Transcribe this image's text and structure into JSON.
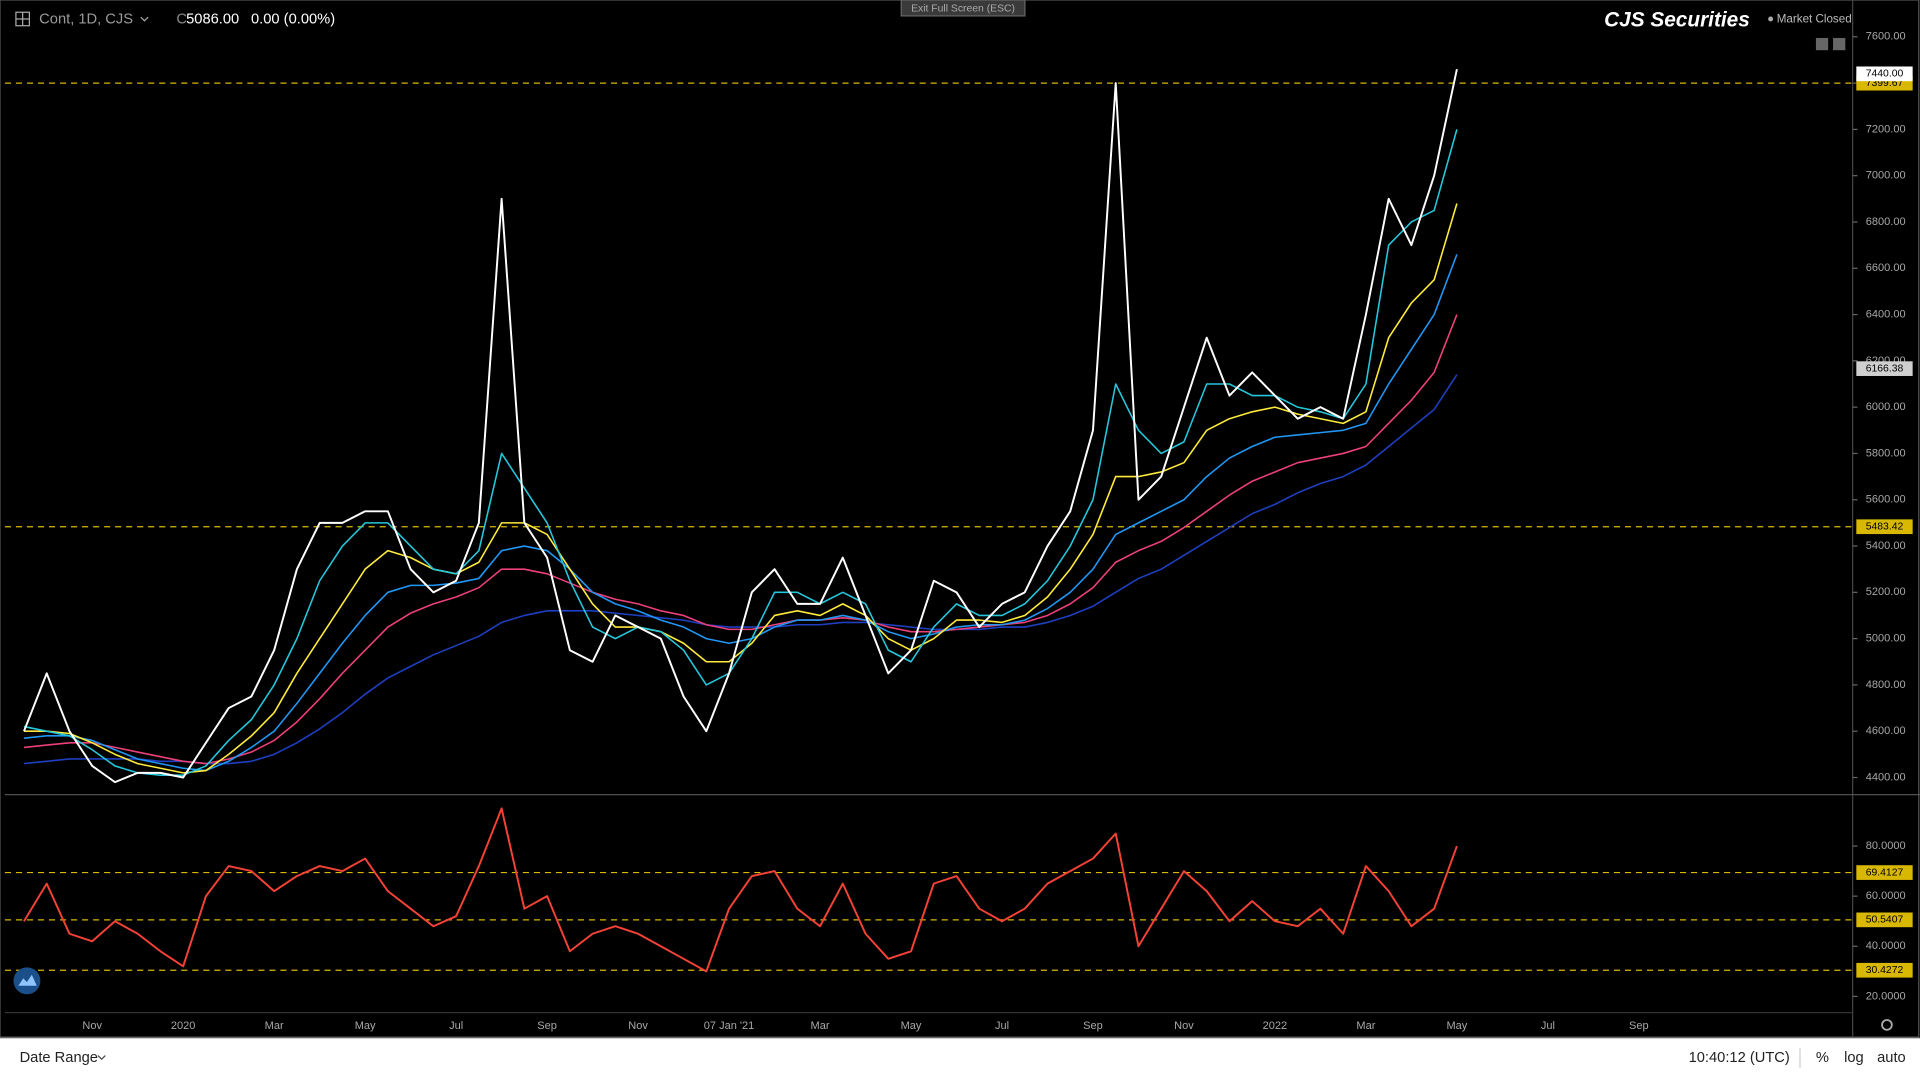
{
  "toolbar": {
    "symbol": "Cont, 1D, CJS",
    "close_prefix": "C",
    "close": "5086.00",
    "change": "0.00 (0.00%)",
    "exit_button": "Exit Full Screen (ESC)",
    "brand": "CJS Securities",
    "status": "Market Closed"
  },
  "footer": {
    "date_range": "Date Range",
    "clock": "10:40:12 (UTC)",
    "percent": "%",
    "log": "log",
    "auto": "auto"
  },
  "chart_data": [
    {
      "type": "line",
      "categories": [
        null,
        null,
        null,
        null,
        "Nov",
        null,
        null,
        null,
        "2020",
        null,
        null,
        null,
        "Mar",
        null,
        null,
        null,
        "May",
        null,
        null,
        null,
        "Jul",
        null,
        null,
        null,
        "Sep",
        null,
        null,
        null,
        "Nov",
        null,
        null,
        null,
        "07 Jan '21",
        null,
        null,
        null,
        "Mar",
        null,
        null,
        null,
        "May",
        null,
        null,
        null,
        "Jul",
        null,
        null,
        null,
        "Sep",
        null,
        null,
        null,
        "Nov",
        null,
        null,
        null,
        "2022",
        null,
        null,
        null,
        "Mar",
        null,
        null,
        null,
        "May",
        null,
        null,
        null,
        "Jul",
        null,
        null,
        null,
        "Sep",
        null,
        null
      ],
      "ylim": [
        4331,
        7759
      ],
      "yticks": [
        {
          "value": 4400,
          "label": "4400.00"
        },
        {
          "value": 4600,
          "label": "4600.00"
        },
        {
          "value": 4800,
          "label": "4800.00"
        },
        {
          "value": 5000,
          "label": "5000.00"
        },
        {
          "value": 5200,
          "label": "5200.00"
        },
        {
          "value": 5400,
          "label": "5400.00"
        },
        {
          "value": 5600,
          "label": "5600.00"
        },
        {
          "value": 5800,
          "label": "5800.00"
        },
        {
          "value": 6000,
          "label": "6000.00"
        },
        {
          "value": 6200,
          "label": "6200.00"
        },
        {
          "value": 6400,
          "label": "6400.00"
        },
        {
          "value": 6600,
          "label": "6600.00"
        },
        {
          "value": 6800,
          "label": "6800.00"
        },
        {
          "value": 7000,
          "label": "7000.00"
        },
        {
          "value": 7200,
          "label": "7200.00"
        },
        {
          "value": 7400,
          "label": "7400.00"
        },
        {
          "value": 7600,
          "label": "7600.00"
        }
      ],
      "grid": false,
      "hlines": [
        7399.67,
        5483.42
      ],
      "hline_color": "#d8b800",
      "price_labels": [
        {
          "value": 7440,
          "label": "7440.00",
          "color": "#ffffff"
        },
        {
          "value": 6166.38,
          "color": "#cfcfcf"
        }
      ],
      "series": [
        {
          "color": "#1e3fbf",
          "values": [
            null,
            4460,
            4470,
            4480,
            4480,
            4480,
            4480,
            4470,
            4470,
            4460,
            4460,
            4470,
            4500,
            4550,
            4610,
            4680,
            4760,
            4830,
            4880,
            4930,
            4970,
            5010,
            5070,
            5100,
            5120,
            5120,
            5120,
            5110,
            5100,
            5090,
            5080,
            5060,
            5050,
            5050,
            5050,
            5060,
            5060,
            5070,
            5070,
            5060,
            5050,
            5040,
            5040,
            5040,
            5050,
            5050,
            5070,
            5100,
            5140,
            5200,
            5260,
            5300,
            5360,
            5420,
            5480,
            5540,
            5580,
            5630,
            5670,
            5700,
            5750,
            5830,
            5910,
            5990,
            6140,
            null,
            null,
            null,
            null,
            null,
            null,
            null,
            null,
            null,
            null
          ]
        },
        {
          "color": "#ec407a",
          "values": [
            null,
            4530,
            4540,
            4550,
            4550,
            4530,
            4510,
            4490,
            4470,
            4460,
            4480,
            4510,
            4560,
            4640,
            4740,
            4850,
            4950,
            5050,
            5110,
            5150,
            5180,
            5220,
            5300,
            5300,
            5280,
            5240,
            5200,
            5170,
            5150,
            5120,
            5100,
            5060,
            5040,
            5040,
            5060,
            5080,
            5080,
            5090,
            5080,
            5050,
            5030,
            5030,
            5040,
            5050,
            5060,
            5070,
            5100,
            5150,
            5220,
            5330,
            5380,
            5420,
            5480,
            5550,
            5620,
            5680,
            5720,
            5760,
            5780,
            5800,
            5830,
            5930,
            6030,
            6150,
            6400,
            null,
            null,
            null,
            null,
            null,
            null,
            null,
            null,
            null,
            null
          ]
        },
        {
          "color": "#2196f3",
          "values": [
            null,
            4570,
            4580,
            4580,
            4560,
            4520,
            4480,
            4460,
            4440,
            4430,
            4470,
            4530,
            4600,
            4720,
            4850,
            4980,
            5100,
            5200,
            5230,
            5230,
            5240,
            5260,
            5380,
            5400,
            5380,
            5300,
            5200,
            5150,
            5120,
            5080,
            5050,
            5000,
            4980,
            5000,
            5050,
            5080,
            5080,
            5100,
            5080,
            5030,
            5000,
            5020,
            5050,
            5060,
            5060,
            5080,
            5130,
            5200,
            5300,
            5450,
            5500,
            5550,
            5600,
            5700,
            5780,
            5830,
            5870,
            5880,
            5890,
            5900,
            5930,
            6100,
            6250,
            6400,
            6660,
            null,
            null,
            null,
            null,
            null,
            null,
            null,
            null,
            null,
            null
          ]
        },
        {
          "color": "#ffeb3b",
          "values": [
            null,
            4600,
            4600,
            4590,
            4550,
            4500,
            4460,
            4440,
            4420,
            4430,
            4500,
            4580,
            4680,
            4850,
            5000,
            5150,
            5300,
            5380,
            5350,
            5300,
            5280,
            5330,
            5500,
            5500,
            5450,
            5300,
            5150,
            5050,
            5050,
            5030,
            4980,
            4900,
            4900,
            4980,
            5100,
            5120,
            5100,
            5150,
            5100,
            5000,
            4950,
            5000,
            5080,
            5080,
            5070,
            5100,
            5180,
            5300,
            5450,
            5700,
            5700,
            5720,
            5760,
            5900,
            5950,
            5980,
            6000,
            5970,
            5950,
            5930,
            5980,
            6300,
            6450,
            6550,
            6880,
            null,
            null,
            null,
            null,
            null,
            null,
            null,
            null,
            null,
            null
          ]
        },
        {
          "color": "#26c6da",
          "values": [
            null,
            4620,
            4600,
            4580,
            4520,
            4450,
            4420,
            4410,
            4410,
            4450,
            4560,
            4650,
            4800,
            5000,
            5250,
            5400,
            5500,
            5500,
            5400,
            5300,
            5280,
            5380,
            5800,
            5650,
            5500,
            5250,
            5050,
            5000,
            5050,
            5030,
            4950,
            4800,
            4850,
            5000,
            5200,
            5200,
            5150,
            5200,
            5150,
            4950,
            4900,
            5050,
            5150,
            5100,
            5100,
            5150,
            5250,
            5400,
            5600,
            6100,
            5900,
            5800,
            5850,
            6100,
            6100,
            6050,
            6050,
            6000,
            5980,
            5950,
            6100,
            6700,
            6800,
            6850,
            7200,
            null,
            null,
            null,
            null,
            null,
            null,
            null,
            null,
            null,
            null
          ]
        },
        {
          "color": "#ffffff",
          "values": [
            null,
            4600,
            4850,
            4600,
            4450,
            4380,
            4420,
            4420,
            4400,
            4550,
            4700,
            4750,
            4950,
            5300,
            5500,
            5500,
            5550,
            5550,
            5300,
            5200,
            5250,
            5500,
            6900,
            5500,
            5350,
            4950,
            4900,
            5100,
            5050,
            5000,
            4750,
            4600,
            4850,
            5200,
            5300,
            5150,
            5150,
            5350,
            5100,
            4850,
            4950,
            5250,
            5200,
            5050,
            5150,
            5200,
            5400,
            5550,
            5900,
            7400,
            5600,
            5700,
            6000,
            6300,
            6050,
            6150,
            6050,
            5950,
            6000,
            5950,
            6400,
            6900,
            6700,
            7000,
            7460,
            null,
            null,
            null,
            null,
            null,
            null,
            null,
            null,
            null,
            null
          ]
        }
      ]
    },
    {
      "type": "line",
      "ylim": [
        14,
        100
      ],
      "yticks": [
        {
          "value": 20,
          "label": "20.0000"
        },
        {
          "value": 40,
          "label": "40.0000"
        },
        {
          "value": 60,
          "label": "60.0000"
        },
        {
          "value": 80,
          "label": "80.0000"
        }
      ],
      "grid": false,
      "hlines": [
        69.4127,
        50.5407,
        30.4272
      ],
      "hline_color": "#d8b800",
      "series": [
        {
          "color": "#f44336",
          "values": [
            null,
            50,
            65,
            45,
            42,
            50,
            45,
            38,
            32,
            60,
            72,
            70,
            62,
            68,
            72,
            70,
            75,
            62,
            55,
            48,
            52,
            72,
            95,
            55,
            60,
            38,
            45,
            48,
            45,
            40,
            35,
            30,
            55,
            68,
            70,
            55,
            48,
            65,
            45,
            35,
            38,
            65,
            68,
            55,
            50,
            55,
            65,
            70,
            75,
            85,
            40,
            55,
            70,
            62,
            50,
            58,
            50,
            48,
            55,
            45,
            72,
            62,
            48,
            55,
            80,
            null,
            null,
            null,
            null,
            null,
            null,
            null,
            null,
            null,
            null
          ]
        }
      ]
    }
  ]
}
